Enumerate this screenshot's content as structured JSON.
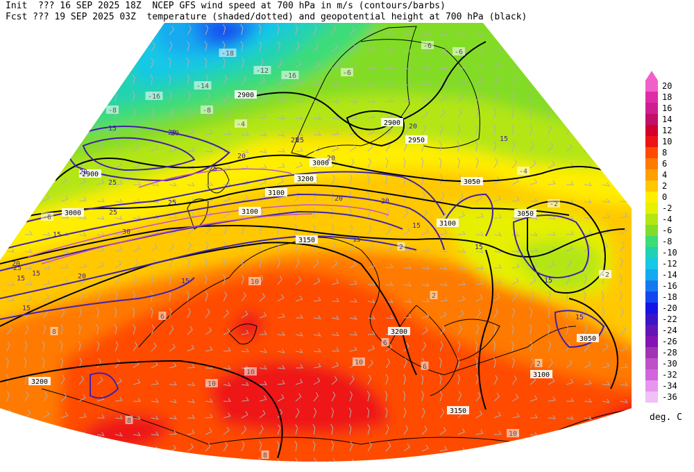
{
  "header": {
    "line1": "Init  ??? 16 SEP 2025 18Z  NCEP GFS wind speed at 700 hPa in m/s (contours/barbs)",
    "line2": "Fcst ??? 19 SEP 2025 03Z  temperature (shaded/dotted) and geopotential height at 700 hPa (black)"
  },
  "colorbar": {
    "units": "deg. C",
    "levels": [
      {
        "label": "20",
        "color": "#f060c8"
      },
      {
        "label": "18",
        "color": "#e02ca8"
      },
      {
        "label": "16",
        "color": "#d01e90"
      },
      {
        "label": "14",
        "color": "#c0106a"
      },
      {
        "label": "12",
        "color": "#d4002c"
      },
      {
        "label": "10",
        "color": "#ee1414"
      },
      {
        "label": "8",
        "color": "#ff4b00"
      },
      {
        "label": "6",
        "color": "#ff7a00"
      },
      {
        "label": "4",
        "color": "#ffa000"
      },
      {
        "label": "2",
        "color": "#ffc800"
      },
      {
        "label": "0",
        "color": "#ffee00"
      },
      {
        "label": "-2",
        "color": "#e6f000"
      },
      {
        "label": "-4",
        "color": "#b4e614"
      },
      {
        "label": "-6",
        "color": "#82dc28"
      },
      {
        "label": "-8",
        "color": "#3cdc78"
      },
      {
        "label": "-10",
        "color": "#20d2b4"
      },
      {
        "label": "-12",
        "color": "#14c8e6"
      },
      {
        "label": "-14",
        "color": "#14aaf0"
      },
      {
        "label": "-16",
        "color": "#1478f0"
      },
      {
        "label": "-18",
        "color": "#1446f0"
      },
      {
        "label": "-20",
        "color": "#1414e6"
      },
      {
        "label": "-22",
        "color": "#3c14c8"
      },
      {
        "label": "-24",
        "color": "#6414b4"
      },
      {
        "label": "-26",
        "color": "#8214b4"
      },
      {
        "label": "-28",
        "color": "#a032b4"
      },
      {
        "label": "-30",
        "color": "#be50c8"
      },
      {
        "label": "-32",
        "color": "#d264dc"
      },
      {
        "label": "-34",
        "color": "#e696ee"
      },
      {
        "label": "-36",
        "color": "#f0c0f6"
      }
    ]
  },
  "map": {
    "height_labels": [
      {
        "text": "2900"
      },
      {
        "text": "2900"
      },
      {
        "text": "2900"
      },
      {
        "text": "2950"
      },
      {
        "text": "3000"
      },
      {
        "text": "3000"
      },
      {
        "text": "3050"
      },
      {
        "text": "3050"
      },
      {
        "text": "3100"
      },
      {
        "text": "3100"
      },
      {
        "text": "3100"
      },
      {
        "text": "3150"
      },
      {
        "text": "3200"
      },
      {
        "text": "3200"
      },
      {
        "text": "3200"
      },
      {
        "text": "3150"
      },
      {
        "text": "3050"
      },
      {
        "text": "3100"
      }
    ],
    "temperature_labels": [
      {
        "text": "-18"
      },
      {
        "text": "-12"
      },
      {
        "text": "-16"
      },
      {
        "text": "-14"
      },
      {
        "text": "-16"
      },
      {
        "text": "-8"
      },
      {
        "text": "-8"
      },
      {
        "text": "-6"
      },
      {
        "text": "-6"
      },
      {
        "text": "-6"
      },
      {
        "text": "-4"
      },
      {
        "text": "-6"
      },
      {
        "text": "-2"
      },
      {
        "text": "-4"
      },
      {
        "text": "-2"
      },
      {
        "text": "2"
      },
      {
        "text": "2"
      },
      {
        "text": "6"
      },
      {
        "text": "10"
      },
      {
        "text": "10"
      },
      {
        "text": "10"
      },
      {
        "text": "8"
      },
      {
        "text": "6"
      },
      {
        "text": "10"
      },
      {
        "text": "8"
      },
      {
        "text": "8"
      },
      {
        "text": "10"
      },
      {
        "text": "6"
      },
      {
        "text": "2"
      },
      {
        "text": "-2"
      }
    ],
    "wind_labels": [
      {
        "text": "15"
      },
      {
        "text": "20"
      },
      {
        "text": "25"
      },
      {
        "text": "20"
      },
      {
        "text": "25"
      },
      {
        "text": "20"
      },
      {
        "text": "25"
      },
      {
        "text": "20"
      },
      {
        "text": "25"
      },
      {
        "text": "30"
      },
      {
        "text": "25"
      },
      {
        "text": "15"
      },
      {
        "text": "20"
      },
      {
        "text": "15"
      },
      {
        "text": "15"
      },
      {
        "text": "15"
      },
      {
        "text": "15"
      },
      {
        "text": "15"
      },
      {
        "text": "15"
      },
      {
        "text": "20"
      },
      {
        "text": "15"
      },
      {
        "text": "15"
      },
      {
        "text": "25"
      },
      {
        "text": "20"
      },
      {
        "text": "20"
      },
      {
        "text": "15"
      },
      {
        "text": "20"
      },
      {
        "text": "25"
      },
      {
        "text": "20"
      },
      {
        "text": "15"
      }
    ]
  }
}
